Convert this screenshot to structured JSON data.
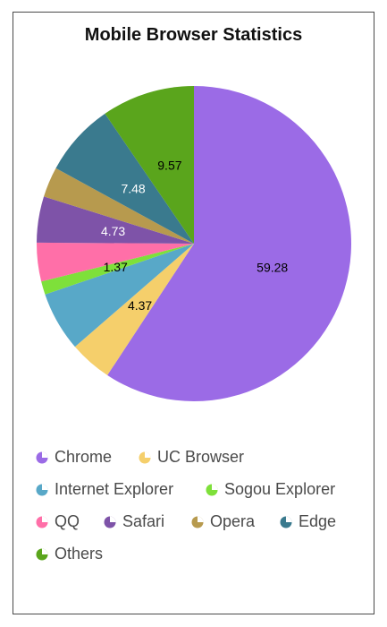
{
  "chart_data": {
    "type": "pie",
    "title": "Mobile Browser Statistics",
    "slices": [
      {
        "name": "Chrome",
        "value": 59.28,
        "color": "#9b6be6",
        "label": "59.28",
        "label_color": "#000000"
      },
      {
        "name": "UC Browser",
        "value": 4.37,
        "color": "#f5cf6b",
        "label": "4.37",
        "label_color": "#000000"
      },
      {
        "name": "Internet Explorer",
        "value": 6.12,
        "color": "#58a8c8",
        "label": "",
        "label_color": "#ffffff"
      },
      {
        "name": "Sogou Explorer",
        "value": 1.37,
        "color": "#7ee03a",
        "label": "1.37",
        "label_color": "#000000"
      },
      {
        "name": "QQ",
        "value": 3.96,
        "color": "#ff6fa8",
        "label": "",
        "label_color": "#ffffff"
      },
      {
        "name": "Safari",
        "value": 4.73,
        "color": "#7e53a8",
        "label": "4.73",
        "label_color": "#ffffff"
      },
      {
        "name": "Opera",
        "value": 3.12,
        "color": "#b79a4e",
        "label": "",
        "label_color": "#ffffff"
      },
      {
        "name": "Edge",
        "value": 7.48,
        "color": "#3a7a8e",
        "label": "7.48",
        "label_color": "#ffffff"
      },
      {
        "name": "Others",
        "value": 9.57,
        "color": "#5aa51c",
        "label": "9.57",
        "label_color": "#000000"
      }
    ],
    "legend_position": "bottom"
  }
}
